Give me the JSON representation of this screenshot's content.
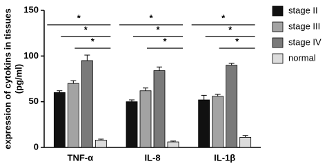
{
  "chart_data": {
    "type": "bar",
    "y_label": [
      "expression of cytokins in tissues",
      "(pg/ml)"
    ],
    "categories": [
      "TNF-α",
      "IL-8",
      "IL-1β"
    ],
    "series": [
      {
        "name": "stage II",
        "color": "#111111",
        "values": [
          60,
          50,
          52
        ],
        "errors": [
          2,
          2,
          5
        ]
      },
      {
        "name": "stage III",
        "color": "#a3a3a3",
        "values": [
          70,
          62,
          56
        ],
        "errors": [
          3,
          3,
          2
        ]
      },
      {
        "name": "stage IV",
        "color": "#7a7a7a",
        "values": [
          95,
          84,
          90
        ],
        "errors": [
          6,
          4,
          2
        ]
      },
      {
        "name": "normal",
        "color": "#dcdcdc",
        "values": [
          8,
          6,
          11
        ],
        "errors": [
          1,
          1,
          2
        ]
      }
    ],
    "annotations": [
      "*",
      "*",
      "*",
      "*",
      "*",
      "*",
      "*",
      "*",
      "*"
    ],
    "ylim": [
      0,
      150
    ],
    "yticks": [
      0,
      50,
      100,
      150
    ]
  }
}
